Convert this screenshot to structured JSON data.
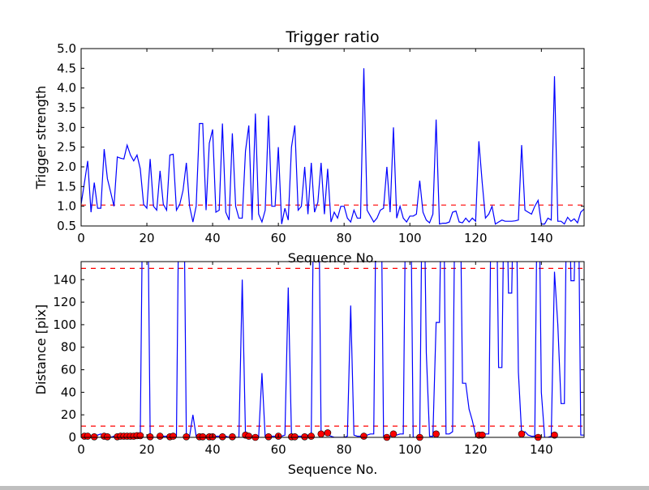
{
  "chart_data": [
    {
      "type": "line",
      "title": "Trigger ratio",
      "xlabel": "Sequence No.",
      "ylabel": "Trigger strength",
      "xlim": [
        0,
        153
      ],
      "ylim": [
        0.5,
        5.0
      ],
      "xticks": [
        "0",
        "20",
        "40",
        "60",
        "80",
        "100",
        "120",
        "140"
      ],
      "yticks": [
        "0.5",
        "1.0",
        "1.5",
        "2.0",
        "2.5",
        "3.0",
        "3.5",
        "4.0",
        "4.5",
        "5.0"
      ],
      "threshold": 1.03,
      "series": [
        {
          "name": "trigger strength",
          "color": "#0000ff",
          "values": [
            1.05,
            1.6,
            2.15,
            0.85,
            1.6,
            0.95,
            0.95,
            2.45,
            1.7,
            1.35,
            1.0,
            2.25,
            2.22,
            2.2,
            2.55,
            2.3,
            2.15,
            2.3,
            1.95,
            1.05,
            0.95,
            2.2,
            1.0,
            0.9,
            1.9,
            1.05,
            0.9,
            2.3,
            2.32,
            0.9,
            1.05,
            1.4,
            2.1,
            1.0,
            0.6,
            1.0,
            3.1,
            3.1,
            0.9,
            2.6,
            2.95,
            0.85,
            0.9,
            3.1,
            0.85,
            0.65,
            2.85,
            1.0,
            0.7,
            0.7,
            2.4,
            3.05,
            0.65,
            3.35,
            0.8,
            0.6,
            0.9,
            3.3,
            1.0,
            1.0,
            2.5,
            0.55,
            0.95,
            0.65,
            2.5,
            3.05,
            0.9,
            1.0,
            2.0,
            0.8,
            2.1,
            0.85,
            1.1,
            2.1,
            0.8,
            1.95,
            0.6,
            0.85,
            0.7,
            1.0,
            1.0,
            0.7,
            0.6,
            0.9,
            0.7,
            0.7,
            4.5,
            0.9,
            0.75,
            0.6,
            0.7,
            0.9,
            0.95,
            2.0,
            0.85,
            3.0,
            0.7,
            1.0,
            0.7,
            0.6,
            0.75,
            0.75,
            0.8,
            1.65,
            0.85,
            0.65,
            0.58,
            0.8,
            3.2,
            0.55,
            0.57,
            0.57,
            0.6,
            0.85,
            0.88,
            0.6,
            0.58,
            0.7,
            0.6,
            0.7,
            0.62,
            2.65,
            1.6,
            0.7,
            0.8,
            1.0,
            0.55,
            0.6,
            0.65,
            0.62,
            0.62,
            0.62,
            0.63,
            0.65,
            2.55,
            0.9,
            0.85,
            0.8,
            1.0,
            1.15,
            0.55,
            0.55,
            0.7,
            0.65,
            4.3,
            0.62,
            0.62,
            0.55,
            0.72,
            0.62,
            0.68,
            0.58,
            0.85,
            0.93
          ]
        }
      ],
      "threshold_color": "#ff0000"
    },
    {
      "type": "line",
      "title": "",
      "xlabel": "Sequence No.",
      "ylabel": "Distance [pix]",
      "xlim": [
        0,
        153
      ],
      "ylim": [
        0,
        156
      ],
      "xticks": [
        "0",
        "20",
        "40",
        "60",
        "80",
        "100",
        "120",
        "140"
      ],
      "yticks": [
        "0",
        "20",
        "40",
        "60",
        "80",
        "100",
        "120",
        "140"
      ],
      "thresholds": [
        10,
        150
      ],
      "series": [
        {
          "name": "distance",
          "color": "#0000ff",
          "values": [
            2,
            2,
            1,
            0,
            0,
            2,
            3,
            1,
            0,
            0,
            1,
            2,
            2,
            2,
            2,
            2,
            2,
            2,
            2,
            300,
            300,
            2,
            0,
            0,
            1,
            1,
            1,
            1,
            1,
            1,
            300,
            300,
            1,
            1,
            20,
            1,
            1,
            1,
            1,
            1,
            1,
            1,
            1,
            1,
            1,
            0,
            0,
            0,
            0,
            140,
            2,
            1,
            0,
            0,
            0,
            57,
            0,
            1,
            1,
            1,
            1,
            1,
            2,
            133,
            2,
            2,
            1,
            1,
            1,
            2,
            3,
            300,
            300,
            4,
            4,
            2,
            1,
            0,
            0,
            0,
            0,
            1,
            117,
            2,
            1,
            1,
            1,
            2,
            3,
            3,
            300,
            300,
            1,
            1,
            1,
            2,
            2,
            3,
            3,
            300,
            300,
            0,
            0,
            0,
            300,
            75,
            1,
            1,
            102,
            102,
            300,
            3,
            3,
            5,
            300,
            300,
            48,
            48,
            25,
            15,
            2,
            2,
            2,
            3,
            3,
            300,
            300,
            62,
            62,
            300,
            128,
            128,
            300,
            58,
            3,
            5,
            2,
            1,
            1,
            300,
            40,
            0,
            0,
            1,
            147,
            100,
            30,
            30,
            300,
            139,
            139,
            300,
            2,
            2
          ]
        },
        {
          "name": "markers",
          "color": "#ff0000",
          "points": [
            [
              1,
              1
            ],
            [
              2,
              1
            ],
            [
              4,
              0.5
            ],
            [
              7,
              1
            ],
            [
              8,
              0.5
            ],
            [
              11,
              0.5
            ],
            [
              12,
              1
            ],
            [
              13,
              1
            ],
            [
              14,
              1
            ],
            [
              15,
              1
            ],
            [
              16,
              1
            ],
            [
              17,
              1.5
            ],
            [
              18,
              1.5
            ],
            [
              21,
              0.5
            ],
            [
              24,
              1
            ],
            [
              27,
              0.5
            ],
            [
              28,
              1
            ],
            [
              32,
              0.5
            ],
            [
              36,
              0.5
            ],
            [
              37,
              0.5
            ],
            [
              39,
              0.5
            ],
            [
              40,
              0.5
            ],
            [
              43,
              0.5
            ],
            [
              46,
              0.5
            ],
            [
              50,
              2
            ],
            [
              51,
              1
            ],
            [
              53,
              0
            ],
            [
              57,
              0.5
            ],
            [
              60,
              1
            ],
            [
              64,
              0.5
            ],
            [
              65,
              0.5
            ],
            [
              68,
              0.5
            ],
            [
              70,
              1
            ],
            [
              73,
              3
            ],
            [
              75,
              4
            ],
            [
              86,
              1
            ],
            [
              93,
              0
            ],
            [
              95,
              3
            ],
            [
              103,
              0
            ],
            [
              108,
              3
            ],
            [
              121,
              2
            ],
            [
              122,
              2
            ],
            [
              134,
              3
            ],
            [
              139,
              0
            ],
            [
              144,
              2
            ]
          ]
        }
      ],
      "threshold_color": "#ff0000"
    }
  ]
}
